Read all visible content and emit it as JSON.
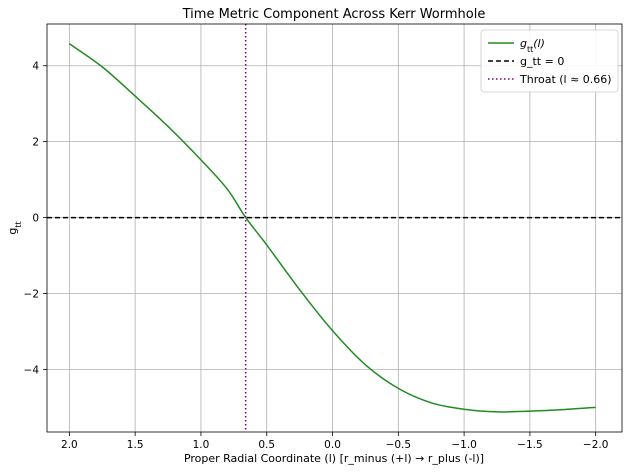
{
  "chart_data": {
    "type": "line",
    "title": "Time Metric Component Across Kerr Wormhole",
    "xlabel": "Proper Radial Coordinate (l) [r_minus (+l) → r_plus (-l)]",
    "ylabel_main": "g",
    "ylabel_sub": "tt",
    "xlim": [
      2.17,
      -2.2
    ],
    "ylim": [
      -5.65,
      5.1
    ],
    "x_inverted": true,
    "grid": true,
    "legend_position": "top-right",
    "x_ticks": [
      2.0,
      1.5,
      1.0,
      0.5,
      0.0,
      -0.5,
      -1.0,
      -1.5,
      -2.0
    ],
    "x_tick_labels": [
      "2.0",
      "1.5",
      "1.0",
      "0.5",
      "0.0",
      "−0.5",
      "−1.0",
      "−1.5",
      "−2.0"
    ],
    "y_ticks": [
      4,
      2,
      0,
      -2,
      -4
    ],
    "y_tick_labels": [
      "4",
      "2",
      "0",
      "−2",
      "−4"
    ],
    "series": [
      {
        "name_main": "g",
        "name_sub": "tt",
        "name_suffix": "(l)",
        "color": "#228B22",
        "style": "solid",
        "x": [
          2.0,
          1.75,
          1.5,
          1.25,
          1.0,
          0.8,
          0.66,
          0.5,
          0.25,
          0.0,
          -0.25,
          -0.5,
          -0.75,
          -1.0,
          -1.25,
          -1.5,
          -1.75,
          -2.0
        ],
        "y": [
          4.58,
          3.97,
          3.2,
          2.4,
          1.52,
          0.75,
          0.0,
          -0.72,
          -1.9,
          -2.98,
          -3.88,
          -4.5,
          -4.88,
          -5.05,
          -5.12,
          -5.1,
          -5.06,
          -5.0
        ]
      },
      {
        "name": "g_tt = 0",
        "color": "#000000",
        "style": "dashed",
        "y_constant": 0
      },
      {
        "name": "Throat (l ≈ 0.66)",
        "color": "#800080",
        "style": "dotted",
        "x_constant": 0.66
      }
    ]
  }
}
